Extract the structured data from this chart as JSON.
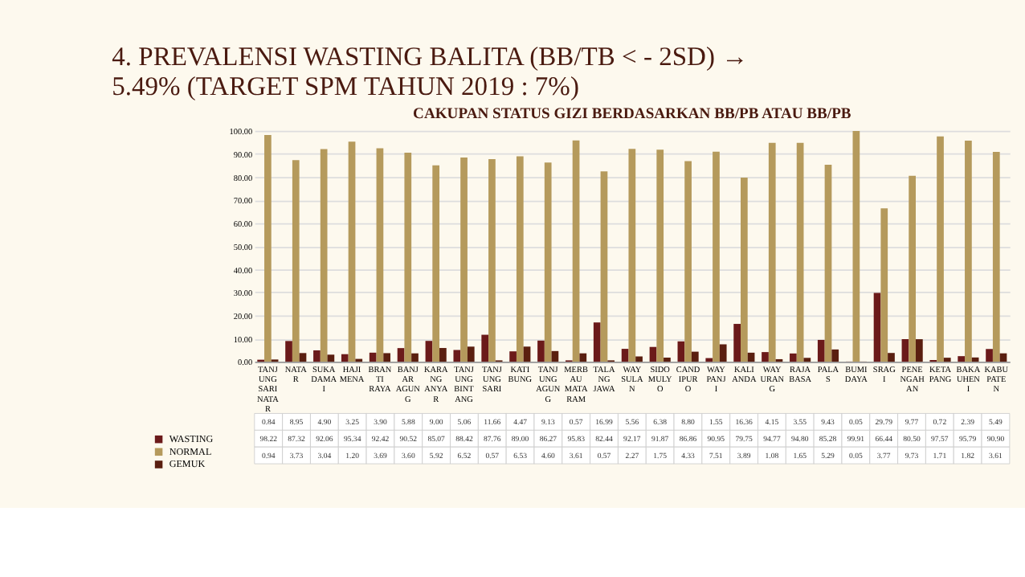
{
  "chart_data": {
    "type": "bar",
    "title": "4. PREVALENSI WASTING BALITA (BB/TB < - 2SD) → 5.49% (TARGET SPM TAHUN 2019 : 7%)",
    "subtitle": "CAKUPAN STATUS GIZI BERDASARKAN BB/PB ATAU BB/PB",
    "categories": [
      "TANJUNG SARI NATAR",
      "NATAR",
      "SUKADAMAI",
      "HAJIMENA",
      "BRANTI RAYA",
      "BANJAR AGUNG",
      "KARANG ANYAR",
      "TANJUNG BINTANG",
      "TANJUNG SARI",
      "KATIBUNG",
      "TANJUNG AGUNG",
      "MERBAU MATARAM",
      "TALANG JAWA",
      "WAY SULAN",
      "SIDOMULYO",
      "CANDIPURO",
      "WAY PANJI",
      "KALIANDA",
      "WAY URANG",
      "RAJABASA",
      "PALAS",
      "BUMI DAYA",
      "SRAGI",
      "PENENGAHAN",
      "KETAPANG",
      "BAKAUHENI",
      "KABUPATEN"
    ],
    "series": [
      {
        "name": "WASTING",
        "color": "#6b1a1a",
        "values": [
          0.84,
          8.95,
          4.9,
          3.25,
          3.9,
          5.88,
          9.0,
          5.06,
          11.66,
          4.47,
          9.13,
          0.57,
          16.99,
          5.56,
          6.38,
          8.8,
          1.55,
          16.36,
          4.15,
          3.55,
          9.43,
          0.05,
          29.79,
          9.77,
          0.72,
          2.39,
          5.49
        ],
        "value_labels": [
          "0.84",
          "8.95",
          "4.90",
          "3.25",
          "3.90",
          "5.88",
          "9.00",
          "5.06",
          "11.66",
          "4.47",
          "9.13",
          "0.57",
          "16.99",
          "5.56",
          "6.38",
          "8.80",
          "1.55",
          "16.36",
          "4.15",
          "3.55",
          "9.43",
          "0.05",
          "29.79",
          "9.77",
          "0.72",
          "2.39",
          "5.49"
        ]
      },
      {
        "name": "NORMAL",
        "color": "#b59a5c",
        "values": [
          98.22,
          87.32,
          92.06,
          95.34,
          92.42,
          90.52,
          85.07,
          88.42,
          87.76,
          89.0,
          86.27,
          95.83,
          82.44,
          92.17,
          91.87,
          86.86,
          90.95,
          79.75,
          94.77,
          94.8,
          85.28,
          99.91,
          66.44,
          80.5,
          97.57,
          95.79,
          90.9
        ],
        "value_labels": [
          "98.22",
          "87.32",
          "92.06",
          "95.34",
          "92.42",
          "90.52",
          "85.07",
          "88.42",
          "87.76",
          "89.00",
          "86.27",
          "95.83",
          "82.44",
          "92.17",
          "91.87",
          "86.86",
          "90.95",
          "79.75",
          "94.77",
          "94.80",
          "85.28",
          "99.91",
          "66.44",
          "80.50",
          "97.57",
          "95.79",
          "90.90"
        ]
      },
      {
        "name": "GEMUK",
        "color": "#5a1f10",
        "values": [
          0.94,
          3.73,
          3.04,
          1.2,
          3.69,
          3.6,
          5.92,
          6.52,
          0.57,
          6.53,
          4.6,
          3.61,
          0.57,
          2.27,
          1.75,
          4.33,
          7.51,
          3.89,
          1.08,
          1.65,
          5.29,
          0.05,
          3.77,
          9.73,
          1.71,
          1.82,
          3.61
        ],
        "value_labels": [
          "0.94",
          "3.73",
          "3.04",
          "1.20",
          "3.69",
          "3.60",
          "5.92",
          "6.52",
          "0.57",
          "6.53",
          "4.60",
          "3.61",
          "0.57",
          "2.27",
          "1.75",
          "4.33",
          "7.51",
          "3.89",
          "1.08",
          "1.65",
          "5.29",
          "0.05",
          "3.77",
          "9.73",
          "1.71",
          "1.82",
          "3.61"
        ]
      }
    ],
    "ylim": [
      0,
      100
    ],
    "yticks": [
      {
        "value": 0,
        "label": "0.00"
      },
      {
        "value": 10,
        "label": "10.00"
      },
      {
        "value": 20,
        "label": "20.00"
      },
      {
        "value": 30,
        "label": "30.00"
      },
      {
        "value": 40,
        "label": "40.00"
      },
      {
        "value": 50,
        "label": "50.00"
      },
      {
        "value": 60,
        "label": "60.00"
      },
      {
        "value": 70,
        "label": "70.00"
      },
      {
        "value": 80,
        "label": "80.00"
      },
      {
        "value": 90,
        "label": "90.00"
      },
      {
        "value": 100,
        "label": "100.00"
      }
    ],
    "grid": "y",
    "legend": "bottom left"
  }
}
